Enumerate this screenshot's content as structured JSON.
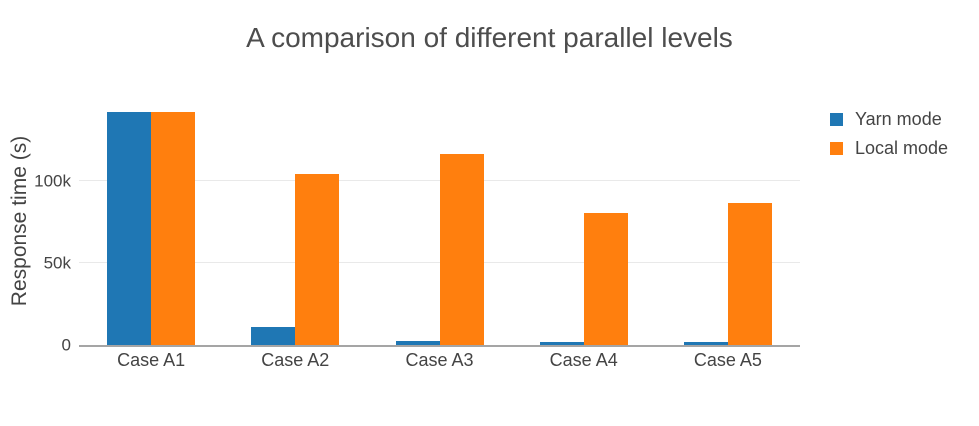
{
  "chart_data": {
    "type": "bar",
    "title": "A comparison of different parallel levels",
    "xlabel": "",
    "ylabel": "Response time (s)",
    "categories": [
      "Case A1",
      "Case A2",
      "Case A3",
      "Case A4",
      "Case A5"
    ],
    "series": [
      {
        "name": "Yarn mode",
        "color": "#1f77b4",
        "values": [
          142000,
          11000,
          2500,
          2000,
          1800
        ]
      },
      {
        "name": "Local mode",
        "color": "#ff7f0e",
        "values": [
          142000,
          104000,
          116000,
          80000,
          86500
        ]
      }
    ],
    "ylim": [
      0,
      149000
    ],
    "yticks": [
      {
        "value": 0,
        "label": "0"
      },
      {
        "value": 50000,
        "label": "50k"
      },
      {
        "value": 100000,
        "label": "100k"
      }
    ],
    "grid": true,
    "legend_position": "right-top",
    "colors": {
      "grid": "#e9e9e9",
      "axis_line": "#a5a5a5",
      "text": "#444444",
      "title_text": "#4d4d4d",
      "background": "#ffffff"
    }
  }
}
